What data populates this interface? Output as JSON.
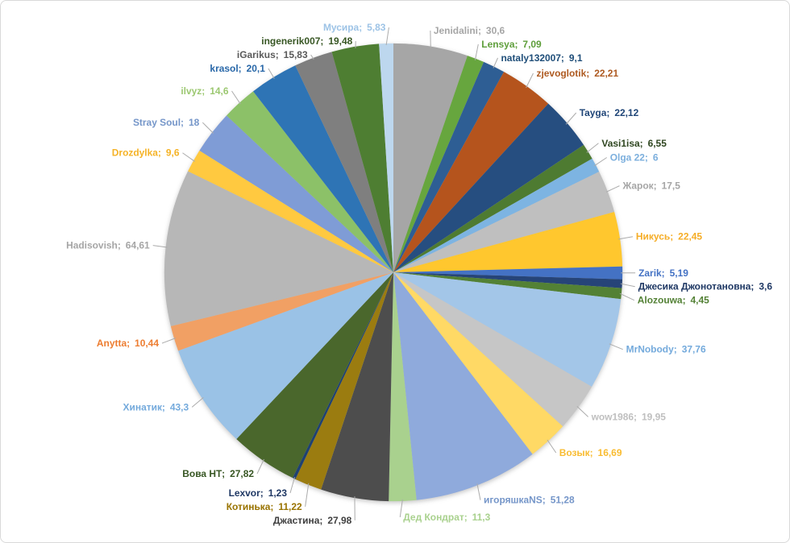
{
  "window": {
    "background": "#FFFFFF",
    "frame_border_color": "#D9D9D9",
    "leader_line_color": "#ABABAB"
  },
  "chart_data": {
    "type": "pie",
    "title": "",
    "legend": "none",
    "direction": "clockwise",
    "start_angle_deg": 0,
    "labels_format": "name; value",
    "decimal_separator": ",",
    "slices": [
      {
        "name": "Jenidalini",
        "value": 30.6,
        "value_label": "30,6",
        "color": "#A6A6A6",
        "label_color": "#A6A6A6"
      },
      {
        "name": "Lensya",
        "value": 7.09,
        "value_label": "7,09",
        "color": "#67A63E",
        "label_color": "#5E9E3A"
      },
      {
        "name": "nataly132007",
        "value": 9.1,
        "value_label": "9,1",
        "color": "#2E5E94",
        "label_color": "#1F4E79"
      },
      {
        "name": "zjevoglotik",
        "value": 22.21,
        "value_label": "22,21",
        "color": "#B5541D",
        "label_color": "#AE5A21"
      },
      {
        "name": "Tayga",
        "value": 22.12,
        "value_label": "22,12",
        "color": "#264E80",
        "label_color": "#1F4577"
      },
      {
        "name": "Vasi1isa",
        "value": 6.55,
        "value_label": "6,55",
        "color": "#4E7B31",
        "label_color": "#2F4620"
      },
      {
        "name": "Olga 22",
        "value": 6,
        "value_label": "6",
        "color": "#7DB4E2",
        "label_color": "#7CAFDD"
      },
      {
        "name": "Жарок",
        "value": 17.5,
        "value_label": "17,5",
        "color": "#BFBFBF",
        "label_color": "#A6A6A6"
      },
      {
        "name": "Никусь",
        "value": 22.45,
        "value_label": "22,45",
        "color": "#FFC72E",
        "label_color": "#F5AD27"
      },
      {
        "name": "Zarik",
        "value": 5.19,
        "value_label": "5,19",
        "color": "#4472C4",
        "label_color": "#4472C4"
      },
      {
        "name": "Джесика Джонотановна",
        "value": 3.6,
        "value_label": "3,6",
        "color": "#264478",
        "label_color": "#1F3864"
      },
      {
        "name": "Alozouwa",
        "value": 4.45,
        "value_label": "4,45",
        "color": "#538135",
        "label_color": "#538135"
      },
      {
        "name": "MrNobody",
        "value": 37.76,
        "value_label": "37,76",
        "color": "#A3C6E8",
        "label_color": "#74AADC"
      },
      {
        "name": "wow1986",
        "value": 19.95,
        "value_label": "19,95",
        "color": "#C6C6C6",
        "label_color": "#BFBFBF"
      },
      {
        "name": "Возык",
        "value": 16.69,
        "value_label": "16,69",
        "color": "#FFD965",
        "label_color": "#F9BC31"
      },
      {
        "name": "игоряшкаNS",
        "value": 51.28,
        "value_label": "51,28",
        "color": "#8FAADC",
        "label_color": "#7596C9"
      },
      {
        "name": "Дед Кондрат",
        "value": 11.3,
        "value_label": "11,3",
        "color": "#A9D18E",
        "label_color": "#A9D18E"
      },
      {
        "name": "Джастина",
        "value": 27.98,
        "value_label": "27,98",
        "color": "#4D4D4D",
        "label_color": "#404040"
      },
      {
        "name": "Котинька",
        "value": 11.22,
        "value_label": "11,22",
        "color": "#9B7C10",
        "label_color": "#997300"
      },
      {
        "name": "Lexvor",
        "value": 1.23,
        "value_label": "1,23",
        "color": "#1F4172",
        "label_color": "#1F3864"
      },
      {
        "name": "Вова НТ",
        "value": 27.82,
        "value_label": "27,82",
        "color": "#4A672C",
        "label_color": "#375623"
      },
      {
        "name": "Хинатик",
        "value": 43.3,
        "value_label": "43,3",
        "color": "#9AC2E6",
        "label_color": "#74AADC"
      },
      {
        "name": "Anytta",
        "value": 10.44,
        "value_label": "10,44",
        "color": "#F1A064",
        "label_color": "#ED7D31"
      },
      {
        "name": "Hadisovish",
        "value": 64.61,
        "value_label": "64,61",
        "color": "#B7B7B7",
        "label_color": "#A6A6A6"
      },
      {
        "name": "Drozdylka",
        "value": 9.6,
        "value_label": "9,6",
        "color": "#FFC940",
        "label_color": "#F5B327"
      },
      {
        "name": "Stray Soul",
        "value": 18,
        "value_label": "18",
        "color": "#7F9CD6",
        "label_color": "#7596C9"
      },
      {
        "name": "ilvyz",
        "value": 14.6,
        "value_label": "14,6",
        "color": "#8CC168",
        "label_color": "#9CC871"
      },
      {
        "name": "krasol",
        "value": 20.1,
        "value_label": "20,1",
        "color": "#2E74B5",
        "label_color": "#2867A8"
      },
      {
        "name": "iGarikus",
        "value": 15.83,
        "value_label": "15,83",
        "color": "#7F7F7F",
        "label_color": "#595959"
      },
      {
        "name": "ingenerik007",
        "value": 19.48,
        "value_label": "19,48",
        "color": "#4E7E32",
        "label_color": "#375623"
      },
      {
        "name": "Мусира",
        "value": 5.83,
        "value_label": "5,83",
        "color": "#BDD7EE",
        "label_color": "#9DC3E6"
      }
    ]
  }
}
